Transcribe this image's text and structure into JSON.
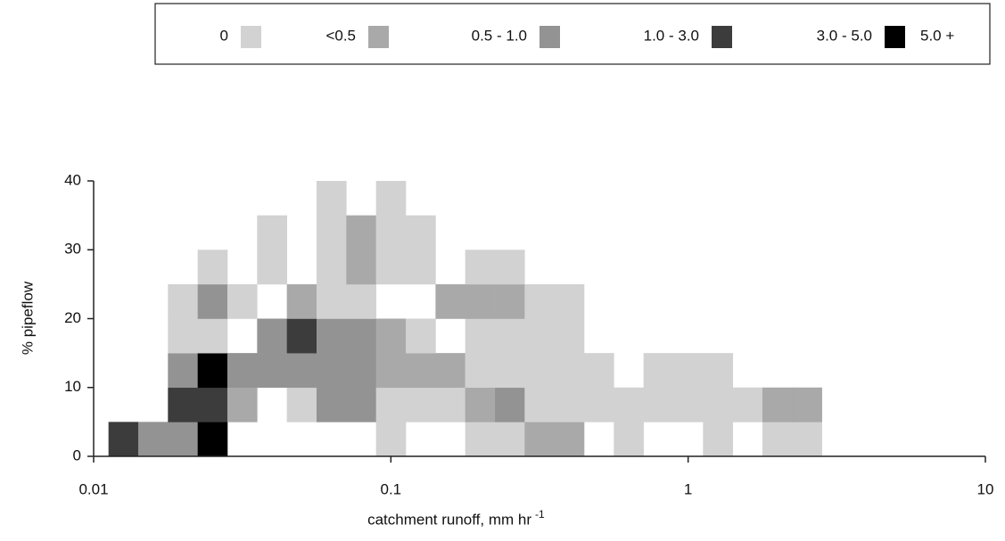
{
  "chart_data": {
    "type": "heatmap",
    "legend_labels": [
      "0",
      "<0.5",
      "0.5 - 1.0",
      "1.0 - 3.0",
      "3.0 - 5.0",
      "5.0 +"
    ],
    "legend_colors": [
      "#d2d2d2",
      "#a9a9a9",
      "#939393",
      "#3c3c3c",
      "#000000"
    ],
    "xlabel": "catchment runoff, mm hr",
    "xlabel_sup": "-1",
    "ylabel": "% pipeflow",
    "xlog": true,
    "xlim": [
      0.01,
      10
    ],
    "xticks": [
      0.01,
      0.1,
      1,
      10
    ],
    "ylim": [
      0,
      40
    ],
    "yticks": [
      0,
      10,
      20,
      30,
      40
    ],
    "xbins": [
      0.01122,
      0.01413,
      0.01778,
      0.02239,
      0.02818,
      0.03548,
      0.04467,
      0.05623,
      0.07079,
      0.08913,
      0.1122,
      0.1413,
      0.1778,
      0.2239,
      0.2818,
      0.3548,
      0.4467,
      0.5623,
      0.7079,
      0.8913,
      1.122,
      1.413,
      1.778,
      2.239,
      2.818
    ],
    "ybins": [
      0,
      5,
      10,
      15,
      20,
      25,
      30,
      35,
      40
    ],
    "z": [
      [
        3,
        2,
        2,
        4,
        null,
        null,
        null,
        null,
        null,
        0,
        null,
        null,
        0,
        0,
        1,
        1,
        null,
        0,
        null,
        null,
        0,
        null,
        0,
        0
      ],
      [
        null,
        null,
        3,
        3,
        1,
        null,
        0,
        2,
        2,
        0,
        0,
        0,
        1,
        2,
        0,
        0,
        0,
        0,
        0,
        0,
        0,
        0,
        1,
        1
      ],
      [
        null,
        null,
        2,
        4,
        2,
        2,
        2,
        2,
        2,
        1,
        1,
        1,
        0,
        0,
        0,
        0,
        0,
        null,
        0,
        0,
        0,
        null,
        null,
        null
      ],
      [
        null,
        null,
        0,
        0,
        null,
        2,
        3,
        2,
        2,
        1,
        0,
        null,
        0,
        0,
        0,
        0,
        null,
        null,
        null,
        null,
        null,
        null,
        null,
        null
      ],
      [
        null,
        null,
        0,
        2,
        0,
        null,
        1,
        0,
        0,
        null,
        null,
        1,
        1,
        1,
        0,
        0,
        null,
        null,
        null,
        null,
        null,
        null,
        null,
        null
      ],
      [
        null,
        null,
        null,
        0,
        null,
        0,
        null,
        0,
        1,
        0,
        0,
        null,
        0,
        0,
        null,
        null,
        null,
        null,
        null,
        null,
        null,
        null,
        null,
        null
      ],
      [
        null,
        null,
        null,
        null,
        null,
        0,
        null,
        0,
        1,
        0,
        0,
        null,
        null,
        null,
        null,
        null,
        null,
        null,
        null,
        null,
        null,
        null,
        null,
        null
      ],
      [
        null,
        null,
        null,
        null,
        null,
        null,
        null,
        0,
        null,
        0,
        null,
        null,
        null,
        null,
        null,
        null,
        null,
        null,
        null,
        null,
        null,
        null,
        null,
        null
      ]
    ]
  }
}
